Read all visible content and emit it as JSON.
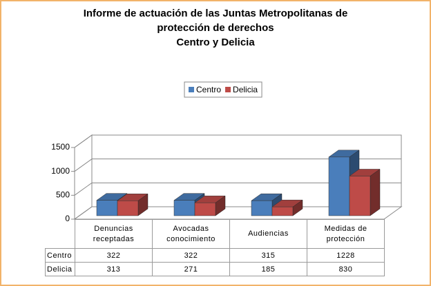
{
  "chart_data": {
    "type": "bar3d",
    "title": [
      "Informe de actuación de las Juntas Metropolitanas de",
      "protección de derechos"
    ],
    "subtitle": "Centro y Delicia",
    "categories": [
      "Denuncias receptadas",
      "Avocadas conocimiento",
      "Audiencias",
      "Medidas de protección"
    ],
    "series": [
      {
        "name": "Centro",
        "color": "#4a7ebb",
        "values": [
          322,
          322,
          315,
          1228
        ]
      },
      {
        "name": "Delicia",
        "color": "#be4b48",
        "values": [
          313,
          271,
          185,
          830
        ]
      }
    ],
    "ylim": [
      0,
      1500
    ],
    "yticks": [
      0,
      500,
      1000,
      1500
    ],
    "grid": true,
    "legend": "top",
    "data_table": true
  }
}
